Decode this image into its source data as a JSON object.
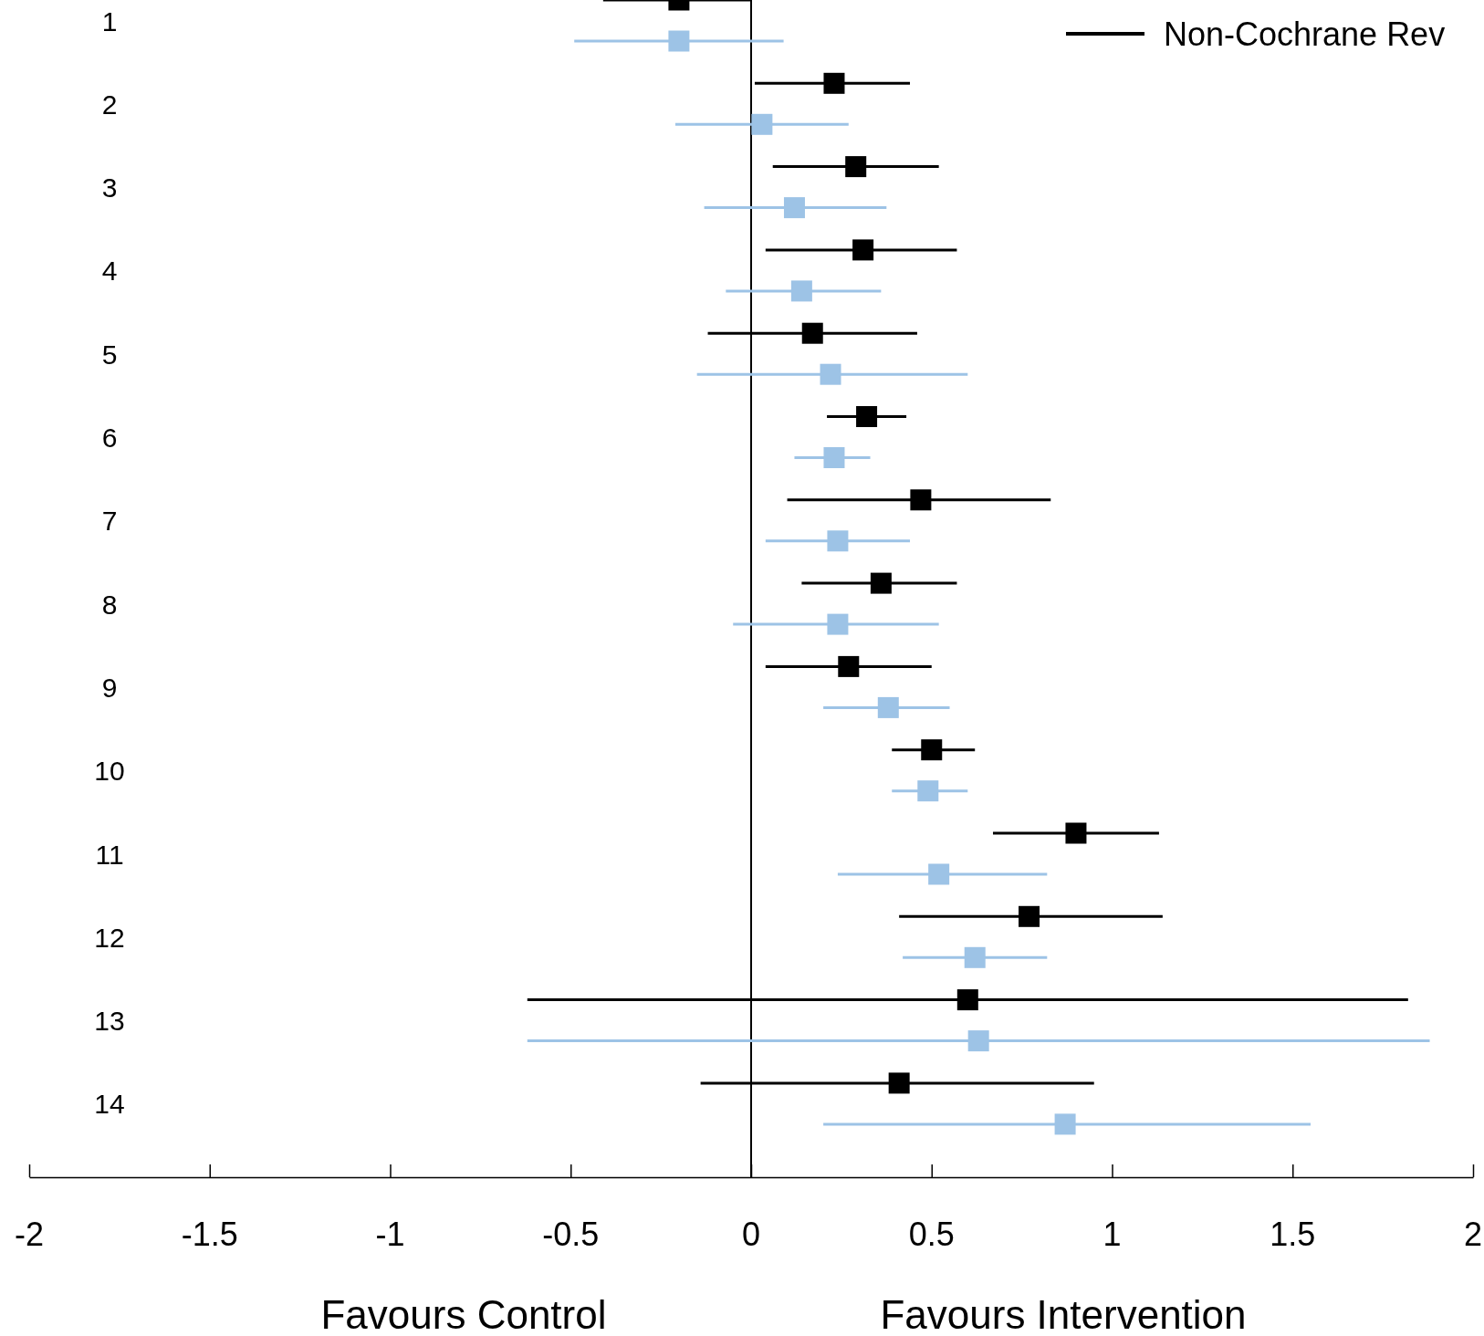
{
  "chart_data": {
    "type": "scatter",
    "orientation": "horizontal",
    "categories": [
      "1",
      "2",
      "3",
      "4",
      "5",
      "6",
      "7",
      "8",
      "9",
      "10",
      "11",
      "12",
      "13",
      "14"
    ],
    "series": [
      {
        "name": "Non-Cochrane Rev",
        "color": "#000000",
        "values": [
          -0.2,
          0.23,
          0.29,
          0.31,
          0.17,
          0.32,
          0.47,
          0.36,
          0.27,
          0.5,
          0.9,
          0.77,
          0.6,
          0.41
        ],
        "errors": [
          [
            -0.41,
            0
          ],
          [
            0.01,
            0.44
          ],
          [
            0.06,
            0.52
          ],
          [
            0.04,
            0.57
          ],
          [
            -0.12,
            0.46
          ],
          [
            0.21,
            0.43
          ],
          [
            0.1,
            0.83
          ],
          [
            0.14,
            0.57
          ],
          [
            0.04,
            0.5
          ],
          [
            0.39,
            0.62
          ],
          [
            0.67,
            1.13
          ],
          [
            0.41,
            1.14
          ],
          [
            -0.62,
            1.82
          ],
          [
            -0.14,
            0.95
          ]
        ]
      },
      {
        "color": "#9dc3e6",
        "values": [
          -0.2,
          0.03,
          0.12,
          0.14,
          0.22,
          0.23,
          0.24,
          0.24,
          0.38,
          0.49,
          0.52,
          0.62,
          0.63,
          0.87
        ],
        "errors": [
          [
            -0.49,
            0.09
          ],
          [
            -0.21,
            0.27
          ],
          [
            -0.13,
            0.375
          ],
          [
            -0.07,
            0.36
          ],
          [
            -0.15,
            0.6
          ],
          [
            0.12,
            0.33
          ],
          [
            0.04,
            0.44
          ],
          [
            -0.05,
            0.52
          ],
          [
            0.2,
            0.55
          ],
          [
            0.39,
            0.6
          ],
          [
            0.24,
            0.82
          ],
          [
            0.42,
            0.82
          ],
          [
            -0.62,
            1.88
          ],
          [
            0.2,
            1.55
          ]
        ]
      }
    ],
    "xlim": [
      -2,
      2
    ],
    "xticks": [
      -2,
      -1.5,
      -1,
      -0.5,
      0,
      0.5,
      1,
      1.5,
      2
    ],
    "ref_lines": [
      {
        "axis": "x",
        "value": 0,
        "color": "#000000"
      }
    ],
    "annotations": [
      {
        "text": "Favours Control"
      },
      {
        "text": "Favours Intervention"
      }
    ],
    "marker": "square",
    "legend": "top right",
    "grid": false
  }
}
